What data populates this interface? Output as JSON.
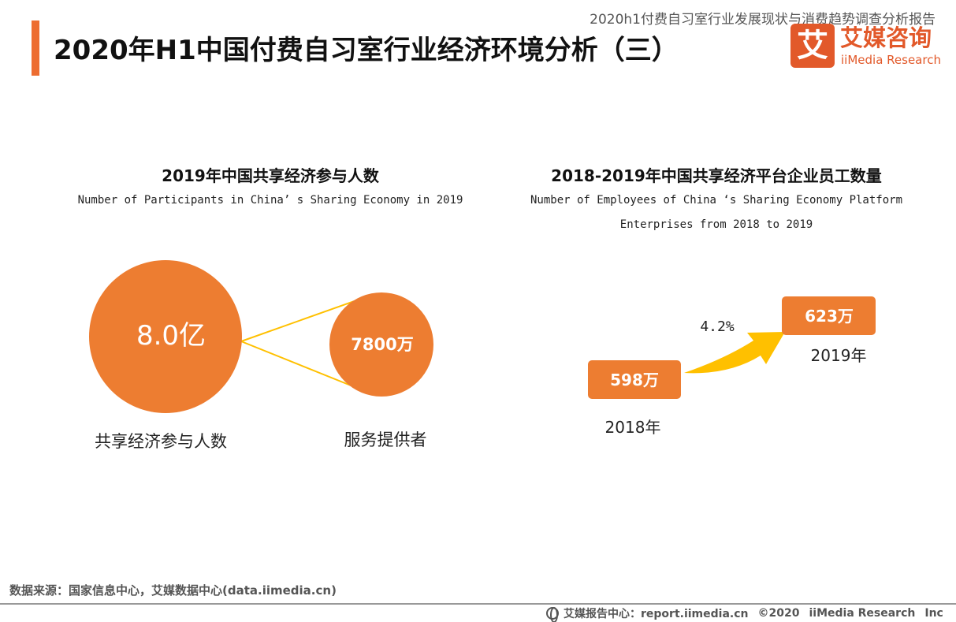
{
  "header": {
    "report_name": "2020h1付费自习室行业发展现状与消费趋势调查分析报告",
    "title": "2020年H1中国付费自习室行业经济环境分析（三）"
  },
  "logo": {
    "mark": "艾",
    "cn": "艾媒咨询",
    "en": "iiMedia Research"
  },
  "chart_data": [
    {
      "type": "bubble",
      "title": "2019年中国共享经济参与人数",
      "subtitle": "Number of Participants in China’ s Sharing Economy in 2019",
      "items": [
        {
          "label": "共享经济参与人数",
          "value": 8.0,
          "unit": "亿",
          "display": "8.0亿",
          "color": "#ed7d31"
        },
        {
          "label": "服务提供者",
          "value": 7800,
          "unit": "万",
          "display": "7800万",
          "color": "#ed7d31"
        }
      ],
      "connector_color": "#ffc000"
    },
    {
      "type": "bar",
      "title": "2018-2019年中国共享经济平台企业员工数量",
      "subtitle_lines": [
        "Number of Employees of China ‘s Sharing Economy Platform",
        "Enterprises from 2018 to 2019"
      ],
      "categories": [
        "2018年",
        "2019年"
      ],
      "values": [
        598,
        623
      ],
      "unit": "万",
      "displays": [
        "598万",
        "623万"
      ],
      "growth_label": "4.2%",
      "box_color": "#ed7d31",
      "arrow_color": "#ffc000"
    }
  ],
  "footer": {
    "source": "数据来源：国家信息中心，艾媒数据中心(data.iimedia.cn)",
    "report_center": "艾媒报告中心：report.iimedia.cn",
    "copyright": "©2020",
    "brand": "iiMedia Research",
    "truncated": "Inc"
  }
}
